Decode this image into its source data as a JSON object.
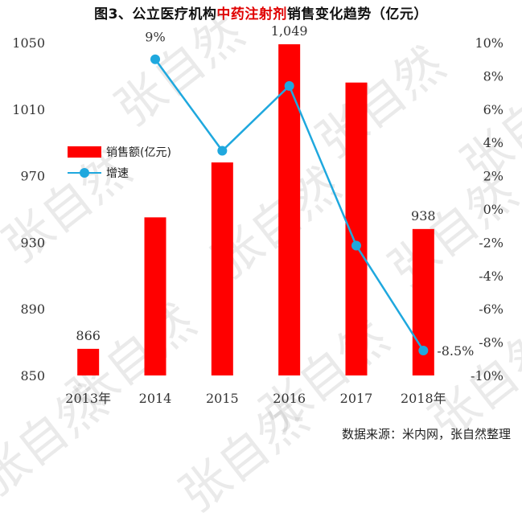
{
  "title": {
    "prefix": "图3、公立医疗机构",
    "accent": "中药注射剂",
    "suffix": "销售变化趋势（亿元）"
  },
  "source": "数据来源：米内网，张自然整理",
  "watermark": "张自然",
  "colors": {
    "bar": "#ff0000",
    "line": "#1fa8de",
    "accent": "#e00000"
  },
  "chart_data": {
    "type": "bar",
    "categories": [
      "2013年",
      "2014",
      "2015",
      "2016",
      "2017",
      "2018年"
    ],
    "series": [
      {
        "name": "销售额(亿元)",
        "type": "bar",
        "axis": "left",
        "values": [
          866,
          945,
          978,
          1049,
          1026,
          938
        ],
        "labels": [
          "866",
          "",
          "",
          "1,049",
          "",
          "938"
        ]
      },
      {
        "name": "增速",
        "type": "line",
        "axis": "right",
        "values": [
          null,
          9.0,
          3.5,
          7.4,
          -2.2,
          -8.5
        ],
        "labels": [
          "",
          "9%",
          "",
          "",
          "",
          "-8.5%"
        ]
      }
    ],
    "y_left": {
      "min": 850,
      "max": 1050,
      "ticks": [
        "850",
        "890",
        "930",
        "970",
        "1010",
        "1050"
      ]
    },
    "y_right": {
      "min": -10,
      "max": 10,
      "ticks": [
        "-10%",
        "-8%",
        "-6%",
        "-4%",
        "-2%",
        "0%",
        "2%",
        "4%",
        "6%",
        "8%",
        "10%"
      ]
    },
    "legend_position": "left-middle"
  }
}
